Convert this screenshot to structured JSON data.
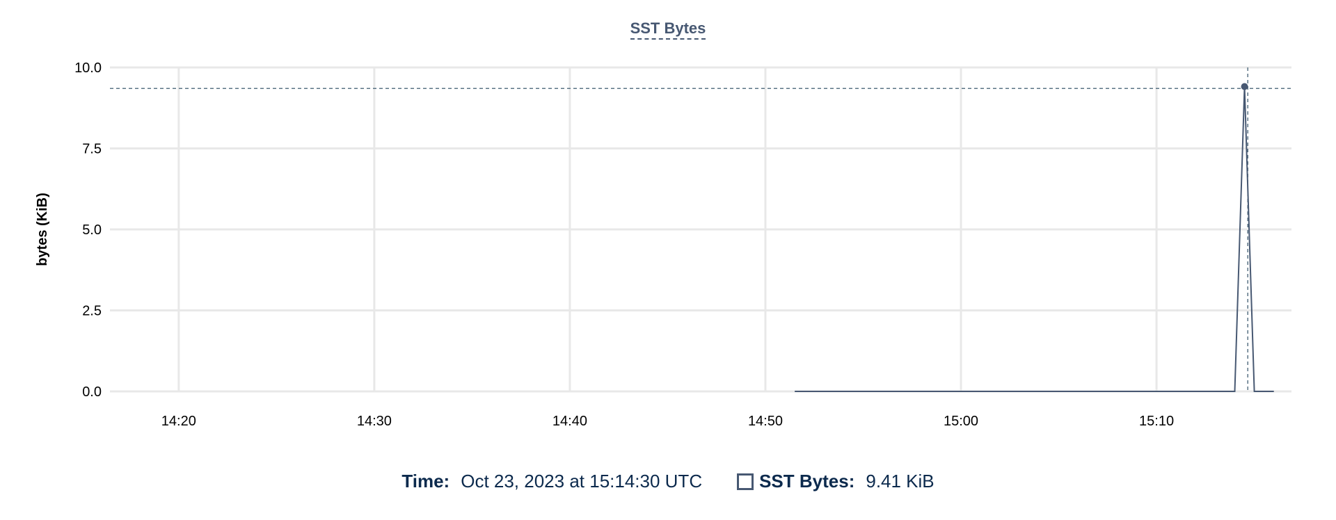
{
  "chart_data": {
    "type": "line",
    "title": "SST Bytes",
    "ylabel": "bytes (KiB)",
    "xlabel": "",
    "ylim": [
      0,
      10
    ],
    "xlim": [
      "14:16:29",
      "15:16:54"
    ],
    "yticks": [
      "0.0",
      "2.5",
      "5.0",
      "7.5",
      "10.0"
    ],
    "xticks": [
      "14:20",
      "14:30",
      "14:40",
      "14:50",
      "15:00",
      "15:10"
    ],
    "grid": true,
    "series": [
      {
        "name": "SST Bytes",
        "color": "#475872",
        "points": [
          [
            "14:51:30",
            0
          ],
          [
            "15:14:00",
            0
          ],
          [
            "15:14:30",
            9.41
          ],
          [
            "15:15:00",
            0
          ],
          [
            "15:16:00",
            0
          ]
        ]
      }
    ],
    "crosshair": {
      "x": "15:14:40",
      "y": 9.35
    }
  },
  "legend": {
    "time_label": "Time:",
    "time_value": "Oct 23, 2023 at 15:14:30 UTC",
    "series_label": "SST Bytes:",
    "series_value": "9.41 KiB"
  }
}
